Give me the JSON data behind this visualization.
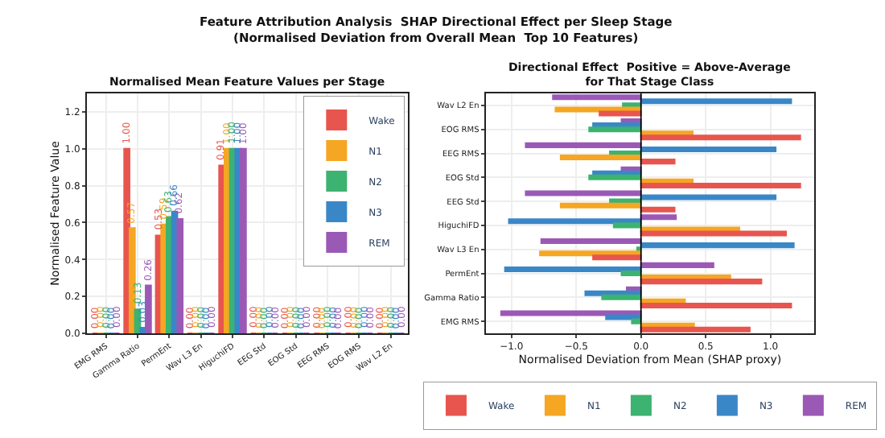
{
  "chart_data": [
    {
      "type": "bar",
      "title": "Feature Attribution Analysis  SHAP Directional Effect per Sleep Stage\n(Normalised Deviation from Overall Mean  Top 10 Features)",
      "subtitle": "Normalised Mean Feature Values per Stage",
      "ylabel": "Normalised Feature Value",
      "categories": [
        "EMG RMS",
        "Gamma Ratio",
        "PermEnt",
        "Wav L3 En",
        "HiguchiFD",
        "EEG Std",
        "EOG Std",
        "EEG RMS",
        "EOG RMS",
        "Wav L2 En"
      ],
      "series": [
        {
          "name": "Wake",
          "color": "#e8554e",
          "values": [
            0.0,
            1.0,
            0.53,
            0.0,
            0.91,
            0.0,
            0.0,
            0.0,
            0.0,
            0.0
          ],
          "value_labels": [
            "0.00",
            "1.00",
            "0.53",
            "0.00",
            "0.91",
            "0.00",
            "0.00",
            "0.00",
            "0.00",
            "0.00"
          ]
        },
        {
          "name": "N1",
          "color": "#f5a623",
          "values": [
            0.0,
            0.57,
            0.59,
            0.0,
            1.0,
            0.0,
            0.0,
            0.0,
            0.0,
            0.0
          ],
          "value_labels": [
            "0.00",
            "0.57",
            "0.59",
            "0.00",
            "1.00",
            "0.00",
            "0.00",
            "0.00",
            "0.00",
            "0.00"
          ]
        },
        {
          "name": "N2",
          "color": "#3cb371",
          "values": [
            0.0,
            0.13,
            0.63,
            0.0,
            1.0,
            0.0,
            0.0,
            0.0,
            0.0,
            0.0
          ],
          "value_labels": [
            "0.00",
            "0.13",
            "0.63",
            "0.00",
            "1.00",
            "0.00",
            "0.00",
            "0.00",
            "0.00",
            "0.00"
          ]
        },
        {
          "name": "N3",
          "color": "#3a87c8",
          "values": [
            0.0,
            0.03,
            0.66,
            0.0,
            1.0,
            0.0,
            0.0,
            0.0,
            0.0,
            0.0
          ],
          "value_labels": [
            "0.00",
            "0.03",
            "0.66",
            "0.00",
            "1.00",
            "0.00",
            "0.00",
            "0.00",
            "0.00",
            "0.00"
          ]
        },
        {
          "name": "REM",
          "color": "#9b59b6",
          "values": [
            0.0,
            0.26,
            0.62,
            0.0,
            1.0,
            0.0,
            0.0,
            0.0,
            0.0,
            0.0
          ],
          "value_labels": [
            "0.00",
            "0.26",
            "0.62",
            "0.00",
            "1.00",
            "0.00",
            "0.00",
            "0.00",
            "0.00",
            "0.00"
          ]
        }
      ],
      "ylim": [
        0,
        1.3
      ],
      "yticks": [
        {
          "value": 0,
          "label": "0.0"
        },
        {
          "value": 0.2,
          "label": "0.2"
        },
        {
          "value": 0.4,
          "label": "0.4"
        },
        {
          "value": 0.6,
          "label": "0.6"
        },
        {
          "value": 0.8,
          "label": "0.8"
        },
        {
          "value": 1,
          "label": "1.0"
        },
        {
          "value": 1.2,
          "label": "1.2"
        }
      ],
      "grid": true,
      "legend": "top right"
    },
    {
      "type": "bar",
      "orientation": "horizontal",
      "title": "Directional Effect  Positive = Above-Average\nfor That Stage Class",
      "xlabel": "Normalised Deviation from Mean (SHAP proxy)",
      "categories": [
        "Wav L2 En",
        "EOG RMS",
        "EEG RMS",
        "EOG Std",
        "EEG Std",
        "HiguchiFD",
        "Wav L3 En",
        "PermEnt",
        "Gamma Ratio",
        "EMG RMS"
      ],
      "series": [
        {
          "name": "Wake",
          "color": "#e8554e",
          "values": [
            -0.32,
            1.23,
            0.26,
            1.23,
            0.26,
            1.12,
            -0.37,
            0.93,
            1.16,
            0.84
          ]
        },
        {
          "name": "N1",
          "color": "#f5a623",
          "values": [
            -0.66,
            0.4,
            -0.62,
            0.4,
            -0.62,
            0.76,
            -0.78,
            0.69,
            0.34,
            0.41
          ]
        },
        {
          "name": "N2",
          "color": "#3cb371",
          "values": [
            -0.14,
            -0.4,
            -0.24,
            -0.4,
            -0.24,
            -0.21,
            -0.03,
            -0.15,
            -0.3,
            -0.07
          ]
        },
        {
          "name": "N3",
          "color": "#3a87c8",
          "values": [
            1.16,
            -0.37,
            1.04,
            -0.37,
            1.04,
            -1.02,
            1.18,
            -1.05,
            -0.43,
            -0.27
          ]
        },
        {
          "name": "REM",
          "color": "#9b59b6",
          "values": [
            -0.68,
            -0.15,
            -0.89,
            -0.15,
            -0.89,
            0.27,
            -0.77,
            0.56,
            -0.11,
            -1.08
          ]
        }
      ],
      "xlim": [
        -1.2,
        1.34
      ],
      "xticks": [
        {
          "value": -1,
          "label": "−1.0"
        },
        {
          "value": -0.5,
          "label": "−0.5"
        },
        {
          "value": 0,
          "label": "0.0"
        },
        {
          "value": 0.5,
          "label": "0.5"
        },
        {
          "value": 1,
          "label": "1.0"
        }
      ],
      "ref_lines": [
        {
          "axis": "x",
          "value": 0,
          "color": "#000000"
        }
      ],
      "grid": true,
      "legend": "bottom"
    }
  ]
}
